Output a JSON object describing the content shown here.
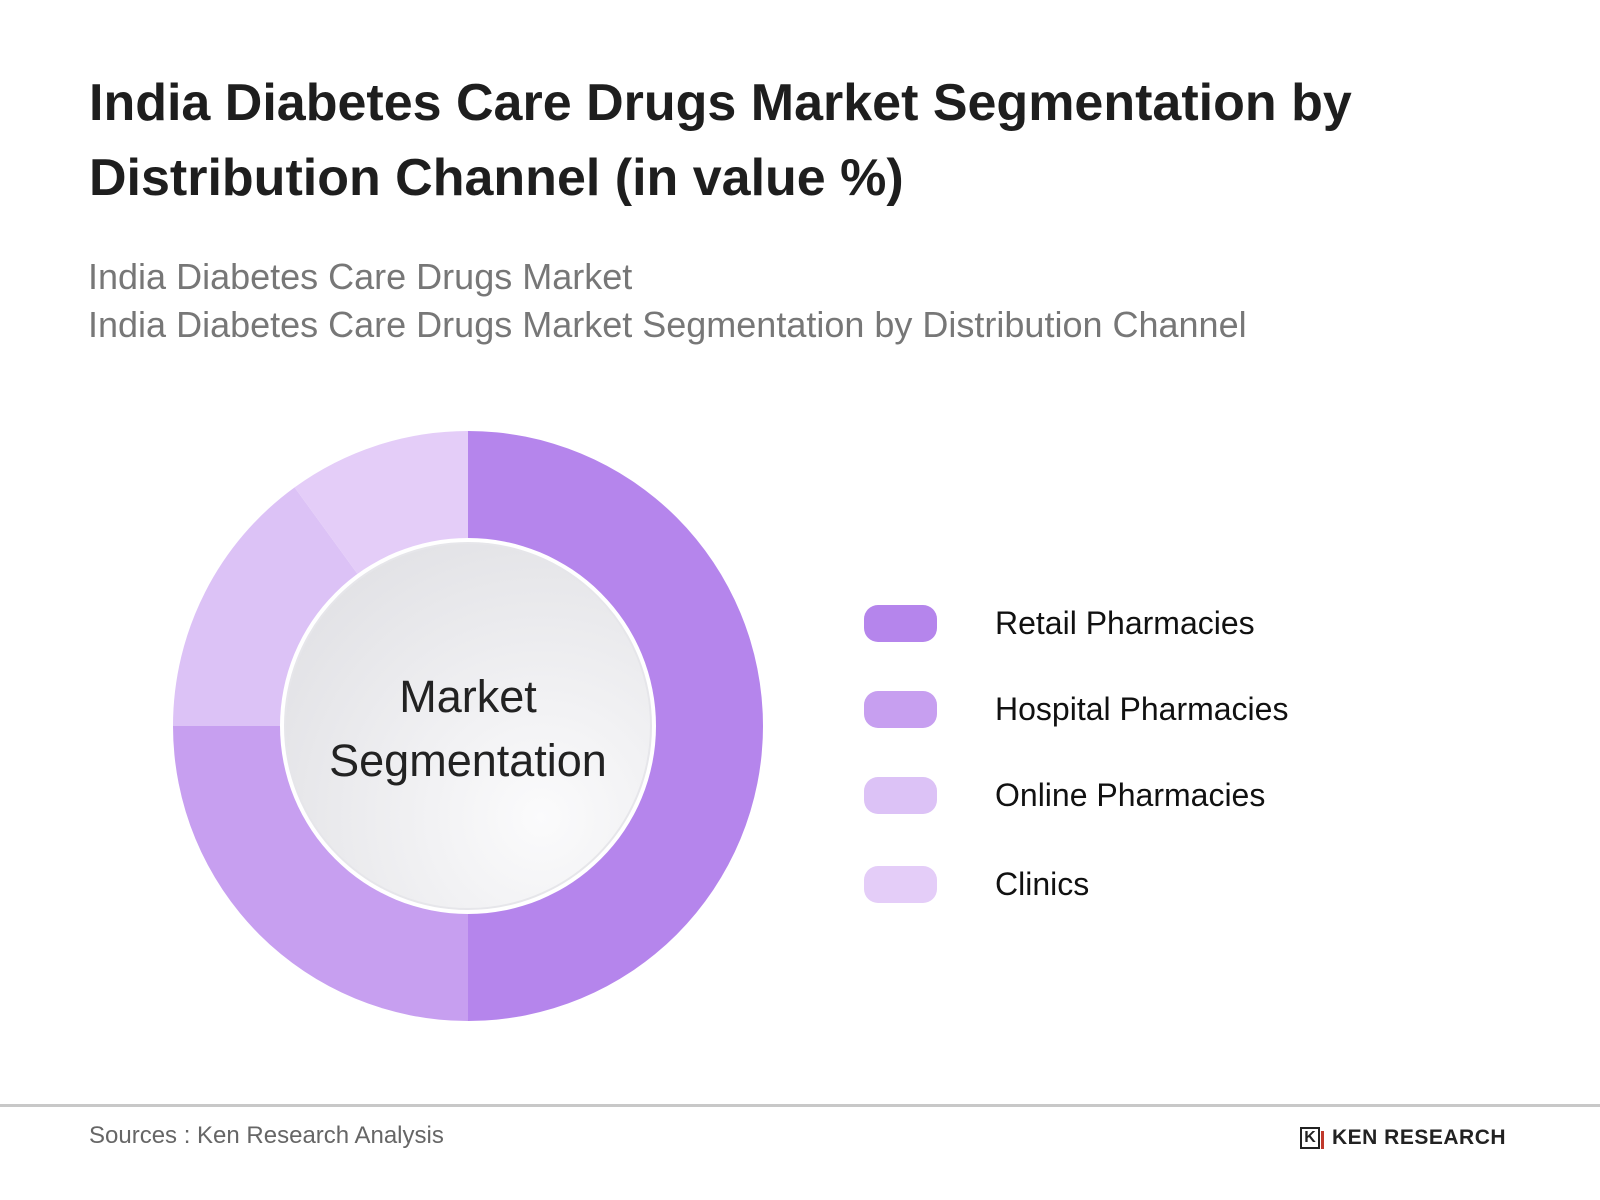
{
  "header": {
    "title": "India Diabetes Care Drugs Market Segmentation by Distribution Channel (in value %)",
    "subtitle_1": "India Diabetes Care Drugs Market",
    "subtitle_2": "India Diabetes Care Drugs Market Segmentation by Distribution Channel"
  },
  "chart_data": {
    "type": "pie",
    "variant": "donut",
    "title": "India Diabetes Care Drugs Market Segmentation by Distribution Channel (in value %)",
    "center_label_line1": "Market",
    "center_label_line2": "Segmentation",
    "categories": [
      "Retail Pharmacies",
      "Hospital Pharmacies",
      "Online Pharmacies",
      "Clinics"
    ],
    "values": [
      50,
      25,
      15,
      10
    ],
    "colors": [
      "#b585ec",
      "#c79ff0",
      "#dcc2f6",
      "#e4cdf8"
    ],
    "legend_placement": "right",
    "start_angle": "top, clockwise"
  },
  "footer": {
    "source": "Sources : Ken Research Analysis",
    "logo_text": "KEN RESEARCH"
  }
}
